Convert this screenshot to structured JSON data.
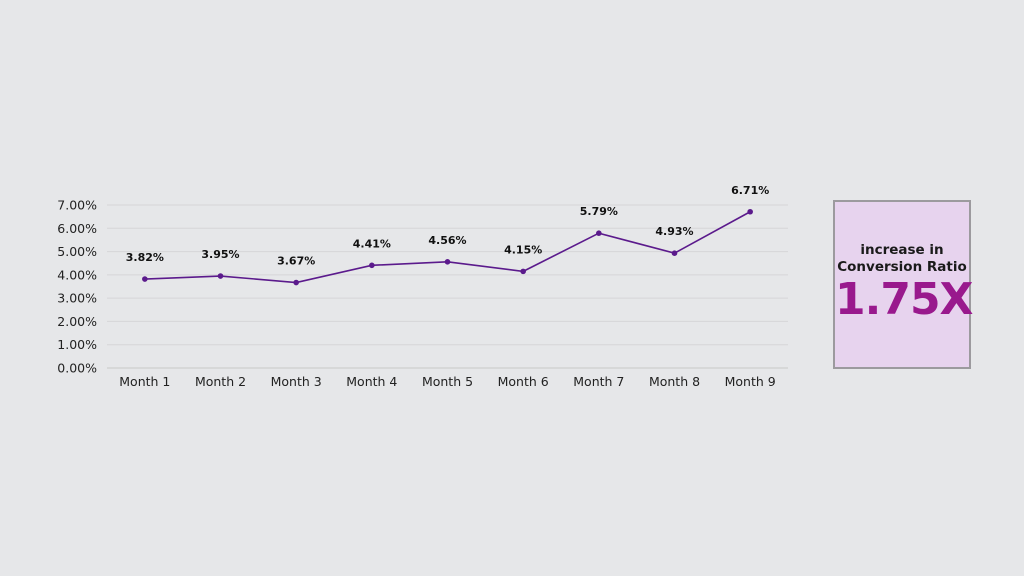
{
  "chart_data": {
    "type": "line",
    "categories": [
      "Month 1",
      "Month 2",
      "Month 3",
      "Month 4",
      "Month 5",
      "Month 6",
      "Month 7",
      "Month 8",
      "Month 9"
    ],
    "values": [
      3.82,
      3.95,
      3.67,
      4.41,
      4.56,
      4.15,
      5.79,
      4.93,
      6.71
    ],
    "data_labels": [
      "3.82%",
      "3.95%",
      "3.67%",
      "4.41%",
      "4.56%",
      "4.15%",
      "5.79%",
      "4.93%",
      "6.71%"
    ],
    "y_ticks": [
      "0.00%",
      "1.00%",
      "2.00%",
      "3.00%",
      "4.00%",
      "5.00%",
      "6.00%",
      "7.00%"
    ],
    "ylim": [
      0,
      7
    ],
    "grid": true,
    "line_color": "#5b1a8c",
    "title": "",
    "xlabel": "",
    "ylabel": ""
  },
  "kpi": {
    "caption_line1": "increase in",
    "caption_line2": "Conversion Ratio",
    "value": "1.75X",
    "value_color": "#99198d",
    "background": "#e7d3ee"
  }
}
